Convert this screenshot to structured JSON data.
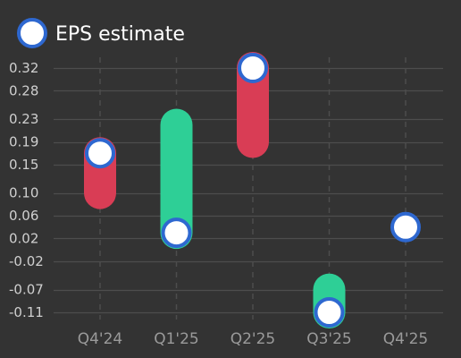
{
  "chart_data": {
    "type": "bar",
    "legend": {
      "label": "EPS estimate",
      "position": "top-left"
    },
    "categories": [
      "Q4'24",
      "Q1'25",
      "Q2'25",
      "Q3'25",
      "Q4'25"
    ],
    "y_ticks": [
      "0.32",
      "0.28",
      "0.23",
      "0.19",
      "0.15",
      "0.10",
      "0.06",
      "0.02",
      "-0.02",
      "-0.07",
      "-0.11"
    ],
    "y_tick_values": [
      0.32,
      0.28,
      0.23,
      0.19,
      0.15,
      0.1,
      0.06,
      0.02,
      -0.02,
      -0.07,
      -0.11
    ],
    "ylim": [
      -0.11,
      0.32
    ],
    "grid": {
      "horizontal": true,
      "vertical_dashed": true
    },
    "series": [
      {
        "name": "EPS estimate",
        "values": [
          0.17,
          0.03,
          0.32,
          -0.11,
          0.04
        ]
      }
    ],
    "bars": [
      {
        "category": "Q4'24",
        "from": 0.1,
        "to": 0.17,
        "direction": "down"
      },
      {
        "category": "Q1'25",
        "from": 0.03,
        "to": 0.22,
        "direction": "up"
      },
      {
        "category": "Q2'25",
        "from": 0.19,
        "to": 0.32,
        "direction": "down"
      },
      {
        "category": "Q3'25",
        "from": -0.11,
        "to": -0.07,
        "direction": "up"
      }
    ],
    "colors": {
      "background": "#333333",
      "grid": "#4d4d4d",
      "up": "#2ecf96",
      "down": "#d93d55",
      "marker_fill": "#ffffff",
      "marker_stroke": "#2e68d0"
    }
  }
}
